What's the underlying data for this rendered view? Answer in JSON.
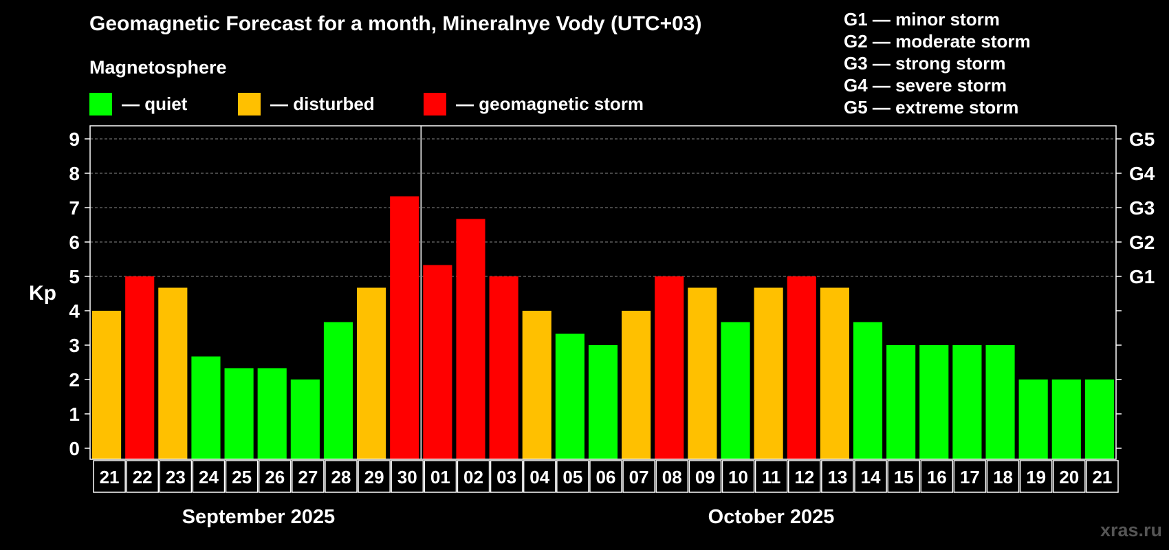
{
  "title": "Geomagnetic Forecast for a month, Mineralnye Vody (UTC+03)",
  "subtitle": "Magnetosphere",
  "legend": [
    {
      "label": "— quiet",
      "color": "#00ff00"
    },
    {
      "label": "— disturbed",
      "color": "#ffc000"
    },
    {
      "label": "— geomagnetic storm",
      "color": "#ff0000"
    }
  ],
  "storm_levels": [
    "G1 — minor storm",
    "G2 — moderate storm",
    "G3 — strong storm",
    "G4 — severe storm",
    "G5 — extreme storm"
  ],
  "watermark": "xras.ru",
  "chart_data": {
    "type": "bar",
    "ylabel": "Kp",
    "ylim": [
      0,
      9
    ],
    "yticks": [
      0,
      1,
      2,
      3,
      4,
      5,
      6,
      7,
      8,
      9
    ],
    "grid": true,
    "right_axis_labels": [
      {
        "value": 5,
        "label": "G1"
      },
      {
        "value": 6,
        "label": "G2"
      },
      {
        "value": 7,
        "label": "G3"
      },
      {
        "value": 8,
        "label": "G4"
      },
      {
        "value": 9,
        "label": "G5"
      }
    ],
    "months": [
      {
        "label": "September 2025",
        "days": 10
      },
      {
        "label": "October 2025",
        "days": 21
      }
    ],
    "categories": [
      "21",
      "22",
      "23",
      "24",
      "25",
      "26",
      "27",
      "28",
      "29",
      "30",
      "01",
      "02",
      "03",
      "04",
      "05",
      "06",
      "07",
      "08",
      "09",
      "10",
      "11",
      "12",
      "13",
      "14",
      "15",
      "16",
      "17",
      "18",
      "19",
      "20",
      "21"
    ],
    "values": [
      4.0,
      5.0,
      4.67,
      2.67,
      2.33,
      2.33,
      2.0,
      3.67,
      4.67,
      7.33,
      5.33,
      6.67,
      5.0,
      4.0,
      3.33,
      3.0,
      4.0,
      5.0,
      4.67,
      3.67,
      4.67,
      5.0,
      4.67,
      3.67,
      3.0,
      3.0,
      3.0,
      3.0,
      2.0,
      2.0,
      2.0
    ],
    "status": [
      "disturbed",
      "storm",
      "disturbed",
      "quiet",
      "quiet",
      "quiet",
      "quiet",
      "quiet",
      "disturbed",
      "storm",
      "storm",
      "storm",
      "storm",
      "disturbed",
      "quiet",
      "quiet",
      "disturbed",
      "storm",
      "disturbed",
      "quiet",
      "disturbed",
      "storm",
      "disturbed",
      "quiet",
      "quiet",
      "quiet",
      "quiet",
      "quiet",
      "quiet",
      "quiet",
      "quiet"
    ],
    "status_colors": {
      "quiet": "#00ff00",
      "disturbed": "#ffc000",
      "storm": "#ff0000"
    }
  }
}
